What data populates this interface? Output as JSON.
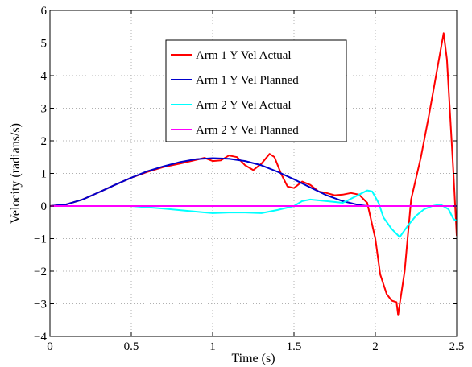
{
  "chart_data": {
    "type": "line",
    "title": "",
    "xlabel": "Time (s)",
    "ylabel": "Velocity (radians/s)",
    "xlim": [
      0,
      2.5
    ],
    "ylim": [
      -4,
      6
    ],
    "xticks": [
      0,
      0.5,
      1,
      1.5,
      2,
      2.5
    ],
    "yticks": [
      -4,
      -3,
      -2,
      -1,
      0,
      1,
      2,
      3,
      4,
      5,
      6
    ],
    "xtick_labels": [
      "0",
      "0.5",
      "1",
      "1.5",
      "2",
      "2.5"
    ],
    "ytick_labels": [
      "−4",
      "−3",
      "−2",
      "−1",
      "0",
      "1",
      "2",
      "3",
      "4",
      "5",
      "6"
    ],
    "grid": true,
    "legend_position": "top-center",
    "series": [
      {
        "name": "Arm 1 Y Vel Actual",
        "color": "#ff0000",
        "points": [
          [
            0,
            0
          ],
          [
            0.1,
            0.05
          ],
          [
            0.2,
            0.2
          ],
          [
            0.3,
            0.42
          ],
          [
            0.4,
            0.65
          ],
          [
            0.5,
            0.87
          ],
          [
            0.6,
            1.05
          ],
          [
            0.7,
            1.2
          ],
          [
            0.8,
            1.3
          ],
          [
            0.9,
            1.42
          ],
          [
            0.95,
            1.48
          ],
          [
            1.0,
            1.38
          ],
          [
            1.05,
            1.4
          ],
          [
            1.1,
            1.55
          ],
          [
            1.15,
            1.5
          ],
          [
            1.2,
            1.25
          ],
          [
            1.25,
            1.1
          ],
          [
            1.3,
            1.3
          ],
          [
            1.35,
            1.6
          ],
          [
            1.38,
            1.5
          ],
          [
            1.42,
            1.0
          ],
          [
            1.46,
            0.6
          ],
          [
            1.5,
            0.55
          ],
          [
            1.55,
            0.75
          ],
          [
            1.6,
            0.65
          ],
          [
            1.65,
            0.45
          ],
          [
            1.7,
            0.4
          ],
          [
            1.75,
            0.33
          ],
          [
            1.8,
            0.35
          ],
          [
            1.85,
            0.4
          ],
          [
            1.9,
            0.35
          ],
          [
            1.95,
            0.1
          ],
          [
            2.0,
            -1.0
          ],
          [
            2.03,
            -2.1
          ],
          [
            2.07,
            -2.7
          ],
          [
            2.1,
            -2.9
          ],
          [
            2.13,
            -2.95
          ],
          [
            2.14,
            -3.35
          ],
          [
            2.15,
            -3.0
          ],
          [
            2.18,
            -2.0
          ],
          [
            2.22,
            0.2
          ],
          [
            2.28,
            1.5
          ],
          [
            2.33,
            2.8
          ],
          [
            2.38,
            4.2
          ],
          [
            2.42,
            5.3
          ],
          [
            2.44,
            4.5
          ],
          [
            2.48,
            1.0
          ],
          [
            2.5,
            -0.9
          ]
        ]
      },
      {
        "name": "Arm 1 Y Vel Planned",
        "color": "#0000cc",
        "points": [
          [
            0,
            0
          ],
          [
            0.1,
            0.05
          ],
          [
            0.2,
            0.2
          ],
          [
            0.3,
            0.42
          ],
          [
            0.4,
            0.65
          ],
          [
            0.5,
            0.87
          ],
          [
            0.6,
            1.07
          ],
          [
            0.7,
            1.22
          ],
          [
            0.8,
            1.35
          ],
          [
            0.9,
            1.44
          ],
          [
            1.0,
            1.47
          ],
          [
            1.1,
            1.45
          ],
          [
            1.2,
            1.38
          ],
          [
            1.3,
            1.25
          ],
          [
            1.4,
            1.05
          ],
          [
            1.5,
            0.82
          ],
          [
            1.6,
            0.57
          ],
          [
            1.7,
            0.33
          ],
          [
            1.8,
            0.15
          ],
          [
            1.9,
            0.03
          ],
          [
            1.95,
            0.0
          ],
          [
            2.5,
            0.0
          ]
        ]
      },
      {
        "name": "Arm 2 Y Vel Actual",
        "color": "#00ffff",
        "points": [
          [
            0,
            0
          ],
          [
            0.5,
            0.0
          ],
          [
            0.7,
            -0.08
          ],
          [
            0.85,
            -0.15
          ],
          [
            1.0,
            -0.22
          ],
          [
            1.1,
            -0.2
          ],
          [
            1.2,
            -0.2
          ],
          [
            1.3,
            -0.22
          ],
          [
            1.4,
            -0.12
          ],
          [
            1.5,
            0.0
          ],
          [
            1.55,
            0.15
          ],
          [
            1.6,
            0.2
          ],
          [
            1.7,
            0.15
          ],
          [
            1.8,
            0.1
          ],
          [
            1.9,
            0.35
          ],
          [
            1.95,
            0.48
          ],
          [
            1.98,
            0.45
          ],
          [
            2.02,
            0.1
          ],
          [
            2.05,
            -0.35
          ],
          [
            2.1,
            -0.7
          ],
          [
            2.15,
            -0.95
          ],
          [
            2.2,
            -0.6
          ],
          [
            2.25,
            -0.3
          ],
          [
            2.3,
            -0.1
          ],
          [
            2.35,
            0.0
          ],
          [
            2.4,
            0.05
          ],
          [
            2.45,
            -0.1
          ],
          [
            2.48,
            -0.4
          ],
          [
            2.5,
            -0.45
          ]
        ]
      },
      {
        "name": "Arm 2 Y Vel Planned",
        "color": "#ff00ff",
        "points": [
          [
            0,
            0
          ],
          [
            2.5,
            0
          ]
        ]
      }
    ]
  }
}
